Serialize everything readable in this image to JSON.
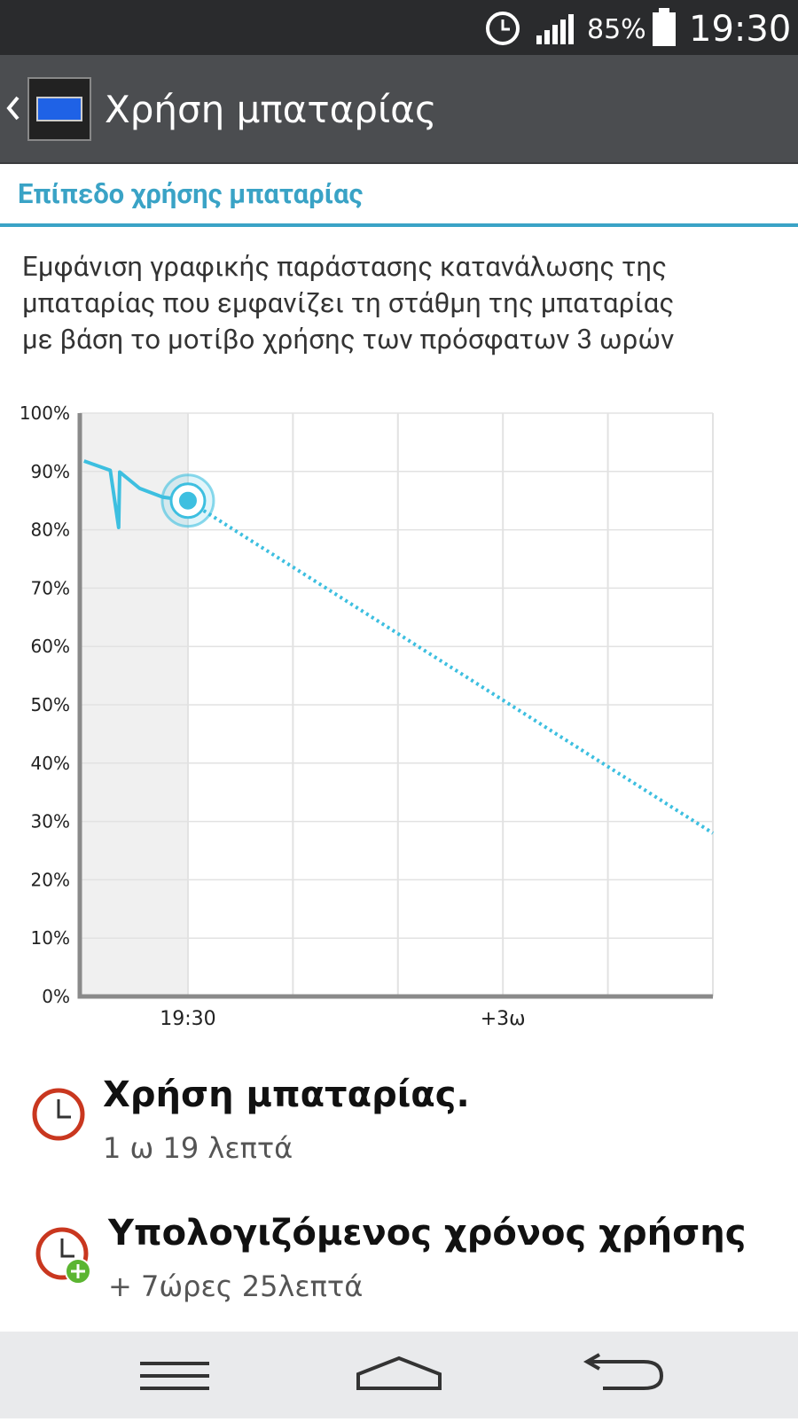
{
  "status_bar": {
    "battery": "85%",
    "time": "19:30"
  },
  "app_bar": {
    "title": "Χρήση μπαταρίας"
  },
  "section": {
    "title": "Επίπεδο χρήσης μπαταρίας",
    "description": [
      "Εμφάνιση γραφικής παράστασης κατανάλωσης της",
      "μπαταρίας που εμφανίζει τη στάθμη της μπαταρίας",
      "με βάση το μοτίβο χρήσης των πρόσφατων 3 ωρών"
    ]
  },
  "chart_data": {
    "type": "line",
    "xlim": [
      -1.03,
      5
    ],
    "ylim": [
      0,
      100
    ],
    "xticks": [
      {
        "value": 0,
        "label": "19:30"
      },
      {
        "value": 1,
        "label": null
      },
      {
        "value": 2,
        "label": null
      },
      {
        "value": 3,
        "label": "+3ω"
      },
      {
        "value": 4,
        "label": null
      },
      {
        "value": 5,
        "label": null
      }
    ],
    "yticks": [
      {
        "value": 0,
        "label": "0%"
      },
      {
        "value": 10,
        "label": "10%"
      },
      {
        "value": 20,
        "label": "20%"
      },
      {
        "value": 30,
        "label": "30%"
      },
      {
        "value": 40,
        "label": "40%"
      },
      {
        "value": 50,
        "label": "50%"
      },
      {
        "value": 60,
        "label": "60%"
      },
      {
        "value": 70,
        "label": "70%"
      },
      {
        "value": 80,
        "label": "80%"
      },
      {
        "value": 90,
        "label": "90%"
      },
      {
        "value": 100,
        "label": "100%"
      }
    ],
    "grid": true,
    "series": [
      {
        "color": "#3dbfe0",
        "style": "solid",
        "x": [
          -0.99,
          -0.74,
          -0.66,
          -0.65,
          -0.46,
          -0.24,
          0
        ],
        "values": [
          91.8,
          90.2,
          80.4,
          89.9,
          87.1,
          85.6,
          85
        ]
      },
      {
        "color": "#3dbfe0",
        "style": "dotted",
        "x": [
          0,
          5
        ],
        "values": [
          85,
          28
        ]
      }
    ]
  },
  "items": [
    {
      "title": "Χρήση μπαταρίας.",
      "detail": "1 ω 19 λεπτά"
    },
    {
      "title": "Υπολογιζόμενος χρόνος χρήσης",
      "detail": "+ 7ώρες 25λεπτά"
    }
  ]
}
